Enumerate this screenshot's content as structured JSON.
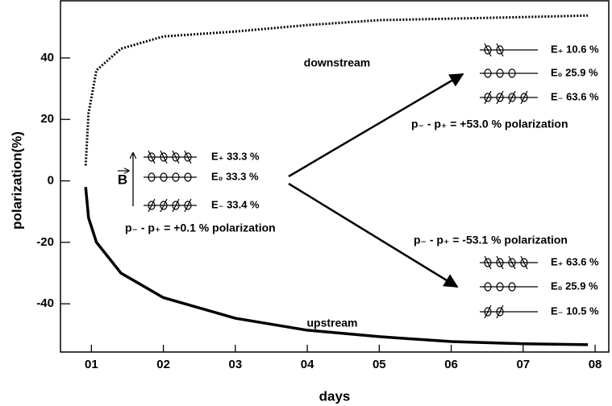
{
  "chart_data": {
    "type": "line",
    "x_label": "days",
    "y_label": "polarization(%)",
    "xlim": [
      0.57,
      8.19
    ],
    "ylim": [
      -55.7,
      58.6
    ],
    "xticks": [
      {
        "value": 1,
        "label": "01"
      },
      {
        "value": 2,
        "label": "02"
      },
      {
        "value": 3,
        "label": "03"
      },
      {
        "value": 4,
        "label": "04"
      },
      {
        "value": 5,
        "label": "05"
      },
      {
        "value": 6,
        "label": "06"
      },
      {
        "value": 7,
        "label": "07"
      },
      {
        "value": 8,
        "label": "08"
      }
    ],
    "yticks": [
      -40,
      -20,
      0,
      20,
      40
    ],
    "x": [
      0.92,
      0.96,
      1.07,
      1.41,
      2,
      3,
      4,
      5,
      6,
      7,
      7.9
    ],
    "series": [
      {
        "name": "downstream",
        "color": "#000000",
        "line_style": "dotted",
        "values": [
          5,
          22,
          36,
          43,
          47,
          48.6,
          50.7,
          52.3,
          52.8,
          53.3,
          53.8
        ]
      },
      {
        "name": "upstream",
        "color": "#000000",
        "line_style": "solid",
        "values": [
          -2,
          -12,
          -20,
          -30,
          -38,
          -44.7,
          -48.6,
          -50.7,
          -52.3,
          -53,
          -53.3
        ]
      }
    ],
    "field_label": "B",
    "states": [
      {
        "rows": [
          "E₊ 33.3 %",
          "E₀ 33.3 %",
          "E₋ 33.4 %"
        ],
        "polarization": "p₋ - p₊ = +0.1 % polarization"
      },
      {
        "rows": [
          "E₊ 10.6 %",
          "E₀ 25.9 %",
          "E₋ 63.6 %"
        ],
        "polarization": "p₋ - p₊ = +53.0 % polarization"
      },
      {
        "rows": [
          "E₊ 63.6 %",
          "E₀ 25.9 %",
          "E₋ 10.5 %"
        ],
        "polarization": "p₋ - p₊ = -53.1 % polarization"
      }
    ]
  }
}
